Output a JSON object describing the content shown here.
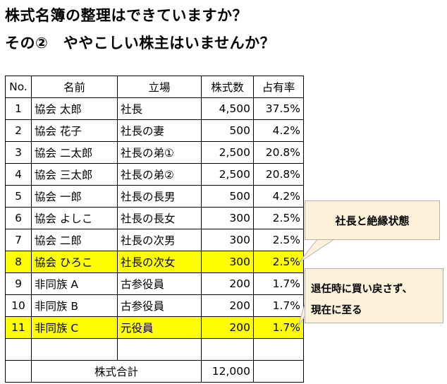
{
  "title_line1": "株式名簿の整理はできていますか？",
  "title_line2": "その②　ややこしい株主はいませんか？",
  "table": {
    "headers": [
      "No.",
      "名前",
      "立場",
      "株式数",
      "占有率"
    ],
    "rows": [
      {
        "no": "1",
        "name": "協会 太郎",
        "role": "社長",
        "shares": "4,500",
        "ratio": "37.5%"
      },
      {
        "no": "2",
        "name": "協会 花子",
        "role": "社長の妻",
        "shares": "500",
        "ratio": "4.2%"
      },
      {
        "no": "3",
        "name": "協会 二太郎",
        "role": "社長の弟①",
        "shares": "2,500",
        "ratio": "20.8%"
      },
      {
        "no": "4",
        "name": "協会 三太郎",
        "role": "社長の弟②",
        "shares": "2,500",
        "ratio": "20.8%"
      },
      {
        "no": "5",
        "name": "協会 一郎",
        "role": "社長の長男",
        "shares": "500",
        "ratio": "4.2%"
      },
      {
        "no": "6",
        "name": "協会 よしこ",
        "role": "社長の長女",
        "shares": "300",
        "ratio": "2.5%"
      },
      {
        "no": "7",
        "name": "協会 二郎",
        "role": "社長の次男",
        "shares": "300",
        "ratio": "2.5%"
      },
      {
        "no": "8",
        "name": "協会 ひろこ",
        "role": "社長の次女",
        "shares": "300",
        "ratio": "2.5%"
      },
      {
        "no": "9",
        "name": "非同族 A",
        "role": "古参役員",
        "shares": "200",
        "ratio": "1.7%"
      },
      {
        "no": "10",
        "name": "非同族 B",
        "role": "古参役員",
        "shares": "200",
        "ratio": "1.7%"
      },
      {
        "no": "11",
        "name": "非同族 C",
        "role": "元役員",
        "shares": "200",
        "ratio": "1.7%"
      }
    ],
    "total_label": "株式合計",
    "total_shares": "12,000"
  },
  "highlight_color": "#ffff00",
  "callout_fill": "#fdf1d9",
  "callout1": "社長と絶縁状態",
  "callout2": {
    "line1": "退任時に買い戻さず、",
    "line2": "現在に至る"
  }
}
